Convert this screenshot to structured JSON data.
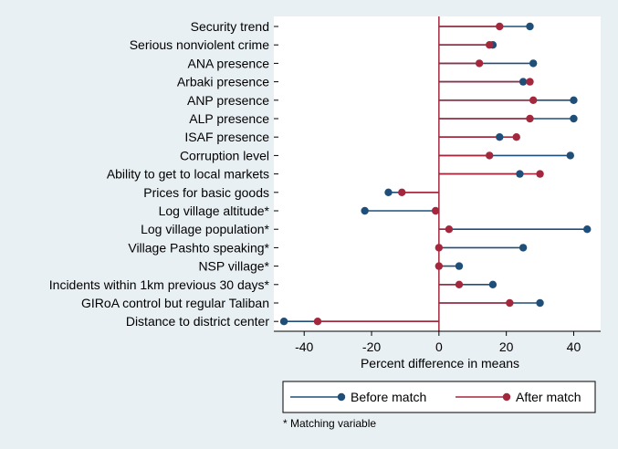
{
  "chart_data": {
    "type": "dot",
    "xlabel": "Percent difference in means",
    "xticks": [
      -40,
      -20,
      0,
      20,
      40
    ],
    "xlim": [
      -49,
      48
    ],
    "colors": {
      "before": "#1f4e79",
      "after": "#a3283d",
      "zero_line": "#a3283d"
    },
    "series": [
      {
        "name": "Before match",
        "key": "before"
      },
      {
        "name": "After match",
        "key": "after"
      }
    ],
    "rows": [
      {
        "label": "Security trend",
        "before": 27,
        "after": 18
      },
      {
        "label": "Serious nonviolent crime",
        "before": 16,
        "after": 15
      },
      {
        "label": "ANA presence",
        "before": 28,
        "after": 12
      },
      {
        "label": "Arbaki presence",
        "before": 25,
        "after": 27
      },
      {
        "label": "ANP presence",
        "before": 40,
        "after": 28
      },
      {
        "label": "ALP presence",
        "before": 40,
        "after": 27
      },
      {
        "label": "ISAF presence",
        "before": 18,
        "after": 23
      },
      {
        "label": "Corruption level",
        "before": 39,
        "after": 15
      },
      {
        "label": "Ability to get to local markets",
        "before": 24,
        "after": 30
      },
      {
        "label": "Prices for basic goods",
        "before": -15,
        "after": -11
      },
      {
        "label": "Log village altitude*",
        "before": -22,
        "after": -1
      },
      {
        "label": "Log village population*",
        "before": 44,
        "after": 3
      },
      {
        "label": "Village Pashto speaking*",
        "before": 25,
        "after": 0
      },
      {
        "label": "NSP village*",
        "before": 6,
        "after": 0
      },
      {
        "label": "Incidents within 1km previous 30 days*",
        "before": 16,
        "after": 6
      },
      {
        "label": "GIRoA control but regular Taliban",
        "before": 30,
        "after": 21
      },
      {
        "label": "Distance to district center",
        "before": -46,
        "after": -36
      }
    ]
  },
  "note": "* Matching variable"
}
